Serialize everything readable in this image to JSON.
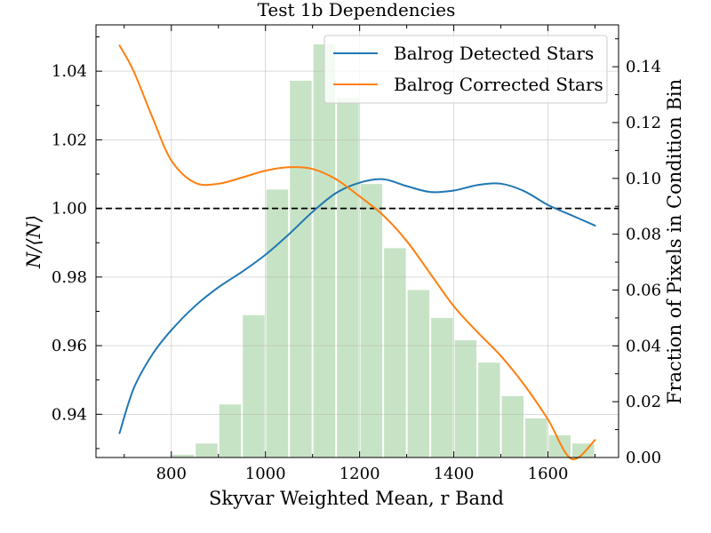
{
  "chart_data": {
    "type": "line",
    "title": "Test 1b Dependencies",
    "xlabel": "Skyvar Weighted Mean, r Band",
    "ylabel": "N/⟨N⟩",
    "y2label": "Fraction of Pixels in Condition Bin",
    "xlim": [
      640,
      1750
    ],
    "ylim": [
      0.9274,
      1.0535
    ],
    "y2lim": [
      0,
      0.155
    ],
    "x_ticks": [
      800,
      1000,
      1200,
      1400,
      1600
    ],
    "y_ticks": [
      0.94,
      0.96,
      0.98,
      1.0,
      1.02,
      1.04
    ],
    "y2_ticks": [
      0.0,
      0.02,
      0.04,
      0.06,
      0.08,
      0.1,
      0.12,
      0.14
    ],
    "grid": true,
    "legend_position": "top-right",
    "reference_line": {
      "y": 1.0,
      "style": "dashed",
      "color": "#000000"
    },
    "series": [
      {
        "name": "Balrog Detected Stars",
        "color": "#1f77b4",
        "x": [
          690,
          720,
          760,
          800,
          850,
          900,
          950,
          1000,
          1050,
          1100,
          1150,
          1200,
          1250,
          1300,
          1350,
          1400,
          1450,
          1500,
          1550,
          1600,
          1650,
          1700
        ],
        "y": [
          0.9345,
          0.9475,
          0.9575,
          0.9645,
          0.9715,
          0.977,
          0.9815,
          0.9865,
          0.9925,
          0.999,
          1.0045,
          1.0075,
          1.0085,
          1.0065,
          1.0048,
          1.0052,
          1.0068,
          1.0072,
          1.005,
          1.001,
          0.998,
          0.995
        ]
      },
      {
        "name": "Balrog Corrected Stars",
        "color": "#ff7f0e",
        "x": [
          690,
          720,
          760,
          800,
          850,
          900,
          950,
          1000,
          1050,
          1100,
          1150,
          1200,
          1250,
          1300,
          1350,
          1400,
          1450,
          1500,
          1550,
          1600,
          1650,
          1700
        ],
        "y": [
          1.0475,
          1.04,
          1.0265,
          1.014,
          1.0075,
          1.0072,
          1.009,
          1.011,
          1.012,
          1.0115,
          1.0085,
          1.0035,
          0.998,
          0.9905,
          0.981,
          0.9715,
          0.964,
          0.957,
          0.9485,
          0.9385,
          0.927,
          0.9325
        ]
      }
    ],
    "histogram": {
      "name": "Fraction of Pixels",
      "color": "#c7e3c5",
      "axis": "y2",
      "bin_width": 50,
      "bin_centers": [
        825,
        875,
        925,
        975,
        1025,
        1075,
        1125,
        1175,
        1225,
        1275,
        1325,
        1375,
        1425,
        1475,
        1525,
        1575,
        1625,
        1675
      ],
      "values": [
        0.001,
        0.005,
        0.019,
        0.051,
        0.096,
        0.135,
        0.148,
        0.129,
        0.098,
        0.075,
        0.06,
        0.05,
        0.042,
        0.034,
        0.022,
        0.014,
        0.008,
        0.005
      ]
    }
  }
}
